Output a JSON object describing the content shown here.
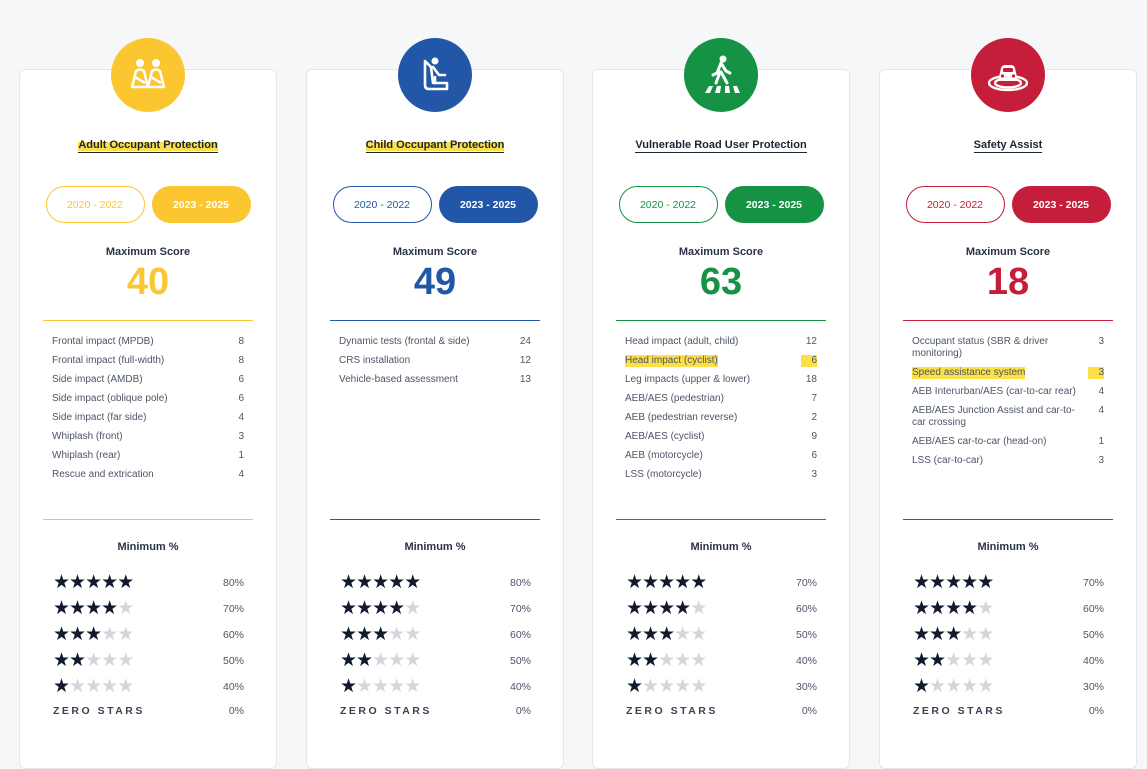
{
  "cards": [
    {
      "title": "Adult Occupant Protection",
      "icon": "adult-occupants-icon",
      "color": "#fcc630",
      "pill_a": "2020 - 2022",
      "pill_b": "2023 - 2025",
      "max_label": "Maximum Score",
      "max_score": "40",
      "items": [
        {
          "label": "Frontal impact (MPDB)",
          "value": "8"
        },
        {
          "label": "Frontal impact (full-width)",
          "value": "8"
        },
        {
          "label": "Side impact (AMDB)",
          "value": "6"
        },
        {
          "label": "Side impact (oblique pole)",
          "value": "6"
        },
        {
          "label": "Side impact (far side)",
          "value": "4"
        },
        {
          "label": "Whiplash (front)",
          "value": "3"
        },
        {
          "label": "Whiplash (rear)",
          "value": "1"
        },
        {
          "label": "Rescue and extrication",
          "value": "4"
        }
      ],
      "min_label": "Minimum %",
      "ratings": [
        {
          "stars": 5,
          "pct": "80%"
        },
        {
          "stars": 4,
          "pct": "70%"
        },
        {
          "stars": 3,
          "pct": "60%"
        },
        {
          "stars": 2,
          "pct": "50%"
        },
        {
          "stars": 1,
          "pct": "40%"
        }
      ],
      "zero_label": "ZERO STARS",
      "zero_pct": "0%"
    },
    {
      "title": "Child Occupant Protection",
      "icon": "child-seat-icon",
      "color": "#2257a8",
      "pill_a": "2020 - 2022",
      "pill_b": "2023 - 2025",
      "max_label": "Maximum Score",
      "max_score": "49",
      "items": [
        {
          "label": "Dynamic tests (frontal & side)",
          "value": "24"
        },
        {
          "label": "CRS installation",
          "value": "12"
        },
        {
          "label": "Vehicle-based assessment",
          "value": "13"
        }
      ],
      "min_label": "Minimum %",
      "ratings": [
        {
          "stars": 5,
          "pct": "80%"
        },
        {
          "stars": 4,
          "pct": "70%"
        },
        {
          "stars": 3,
          "pct": "60%"
        },
        {
          "stars": 2,
          "pct": "50%"
        },
        {
          "stars": 1,
          "pct": "40%"
        }
      ],
      "zero_label": "ZERO STARS",
      "zero_pct": "0%"
    },
    {
      "title": "Vulnerable Road User Protection",
      "icon": "pedestrian-crossing-icon",
      "color": "#169244",
      "pill_a": "2020 - 2022",
      "pill_b": "2023 - 2025",
      "max_label": "Maximum Score",
      "max_score": "63",
      "items": [
        {
          "label": "Head impact (adult, child)",
          "value": "12"
        },
        {
          "label": "Head impact (cyclist)",
          "value": "6"
        },
        {
          "label": "Leg impacts (upper & lower)",
          "value": "18"
        },
        {
          "label": "AEB/AES (pedestrian)",
          "value": "7"
        },
        {
          "label": "AEB (pedestrian reverse)",
          "value": "2"
        },
        {
          "label": "AEB/AES (cyclist)",
          "value": "9"
        },
        {
          "label": "AEB (motorcycle)",
          "value": "6"
        },
        {
          "label": "LSS (motorcycle)",
          "value": "3"
        }
      ],
      "min_label": "Minimum %",
      "ratings": [
        {
          "stars": 5,
          "pct": "70%"
        },
        {
          "stars": 4,
          "pct": "60%"
        },
        {
          "stars": 3,
          "pct": "50%"
        },
        {
          "stars": 2,
          "pct": "40%"
        },
        {
          "stars": 1,
          "pct": "30%"
        }
      ],
      "zero_label": "ZERO STARS",
      "zero_pct": "0%"
    },
    {
      "title": "Safety Assist",
      "icon": "car-radar-icon",
      "color": "#c41e3a",
      "pill_a": "2020 - 2022",
      "pill_b": "2023 - 2025",
      "max_label": "Maximum Score",
      "max_score": "18",
      "items": [
        {
          "label": "Occupant status (SBR & driver monitoring)",
          "value": "3"
        },
        {
          "label": "Speed assistance system",
          "value": "3"
        },
        {
          "label": "AEB Interurban/AES (car-to-car rear)",
          "value": "4"
        },
        {
          "label": "AEB/AES Junction Assist and car-to-car crossing",
          "value": "4"
        },
        {
          "label": "AEB/AES car-to-car (head-on)",
          "value": "1"
        },
        {
          "label": "LSS (car-to-car)",
          "value": "3"
        }
      ],
      "min_label": "Minimum %",
      "ratings": [
        {
          "stars": 5,
          "pct": "70%"
        },
        {
          "stars": 4,
          "pct": "60%"
        },
        {
          "stars": 3,
          "pct": "50%"
        },
        {
          "stars": 2,
          "pct": "40%"
        },
        {
          "stars": 1,
          "pct": "30%"
        }
      ],
      "zero_label": "ZERO STARS",
      "zero_pct": "0%"
    }
  ]
}
